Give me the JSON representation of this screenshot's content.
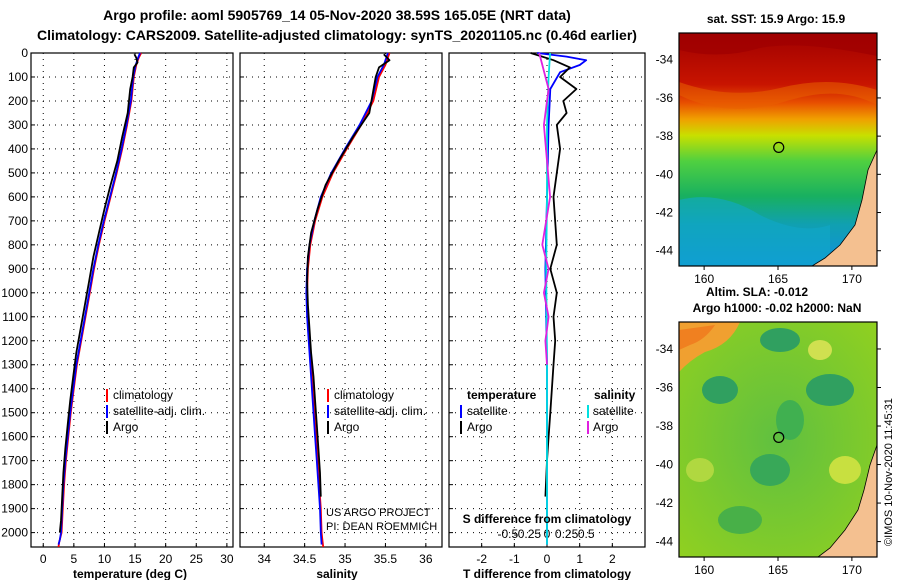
{
  "header": {
    "line1": "Argo profile: aoml 5905769_14 05-Nov-2020 38.59S 165.05E (NRT data)",
    "line2": "Climatology: CARS2009. Satellite-adjusted climatology: synTS_20201105.nc (0.46d earlier)"
  },
  "watermark": "©IMOS 10-Nov-2020 11:45:31",
  "colors": {
    "climatology": "#ff0000",
    "satellite": "#0000ff",
    "argo": "#000000",
    "cyan": "#00e0e0",
    "magenta": "#e020e0",
    "land": "#f4c090"
  },
  "chart_data": [
    {
      "type": "line",
      "panel": "temperature",
      "xlabel": "temperature (deg C)",
      "ylabel": "",
      "xlim": [
        -2,
        31
      ],
      "ylim": [
        2060,
        0
      ],
      "xticks": [
        "0",
        "5",
        "10",
        "15",
        "20",
        "25",
        "30"
      ],
      "xtick_values": [
        0,
        5,
        10,
        15,
        20,
        25,
        30
      ],
      "yticks": [
        "0",
        "100",
        "200",
        "300",
        "400",
        "500",
        "600",
        "700",
        "800",
        "900",
        "1000",
        "1100",
        "1200",
        "1300",
        "1400",
        "1500",
        "1600",
        "1700",
        "1800",
        "1900",
        "2000"
      ],
      "ytick_values": [
        0,
        100,
        200,
        300,
        400,
        500,
        600,
        700,
        800,
        900,
        1000,
        1100,
        1200,
        1300,
        1400,
        1500,
        1600,
        1700,
        1800,
        1900,
        2000
      ],
      "legend": [
        "climatology",
        "satellite-adj. clim.",
        "Argo"
      ],
      "series": [
        {
          "name": "climatology",
          "color": "#ff0000",
          "x": [
            16.0,
            15.6,
            15.2,
            14.8,
            14.4,
            13.7,
            12.9,
            12.0,
            11.0,
            10.0,
            9.1,
            8.3,
            7.6,
            6.9,
            6.2,
            5.5,
            5.0,
            4.5,
            4.1,
            3.7,
            3.4,
            3.2,
            3.0,
            2.8,
            2.6,
            2.5
          ],
          "y": [
            0,
            20,
            50,
            100,
            200,
            300,
            400,
            500,
            600,
            700,
            800,
            900,
            1000,
            1100,
            1200,
            1300,
            1400,
            1500,
            1600,
            1700,
            1800,
            1900,
            2000,
            2020,
            2040,
            2060
          ]
        },
        {
          "name": "satellite-adj. clim.",
          "color": "#0000ff",
          "x": [
            15.8,
            15.5,
            15.1,
            14.7,
            14.3,
            13.6,
            12.8,
            11.9,
            10.9,
            9.9,
            9.0,
            8.2,
            7.5,
            6.8,
            6.1,
            5.4,
            4.9,
            4.4,
            4.0,
            3.6,
            3.3,
            3.1,
            2.9,
            2.7,
            2.5
          ],
          "y": [
            0,
            20,
            50,
            100,
            200,
            300,
            400,
            500,
            600,
            700,
            800,
            900,
            1000,
            1100,
            1200,
            1300,
            1400,
            1500,
            1600,
            1700,
            1800,
            1900,
            2000,
            2030,
            2050
          ]
        },
        {
          "name": "Argo",
          "color": "#000000",
          "x": [
            14.9,
            15.2,
            15.4,
            14.8,
            14.6,
            14.2,
            13.8,
            12.9,
            12.1,
            11.0,
            10.0,
            9.1,
            8.2,
            7.5,
            6.8,
            6.1,
            5.4,
            4.9,
            4.4,
            4.0,
            3.6,
            3.3,
            3.1,
            2.9,
            2.7
          ],
          "y": [
            5,
            20,
            40,
            60,
            100,
            150,
            250,
            350,
            450,
            550,
            650,
            750,
            850,
            950,
            1050,
            1150,
            1250,
            1350,
            1450,
            1550,
            1650,
            1750,
            1850,
            1950,
            2000
          ]
        }
      ]
    },
    {
      "type": "line",
      "panel": "salinity",
      "xlabel": "salinity",
      "xlim": [
        33.7,
        36.2
      ],
      "ylim": [
        2060,
        0
      ],
      "xticks": [
        "34",
        "34.5",
        "35",
        "35.5",
        "36"
      ],
      "xtick_values": [
        34,
        34.5,
        35,
        35.5,
        36
      ],
      "legend": [
        "climatology",
        "satellite-adj. clim.",
        "Argo"
      ],
      "annotation": [
        "US ARGO PROJECT",
        "PI: DEAN ROEMMICH"
      ],
      "series": [
        {
          "name": "climatology",
          "color": "#ff0000",
          "x": [
            35.55,
            35.5,
            35.42,
            35.35,
            35.2,
            35.02,
            34.85,
            34.72,
            34.63,
            34.57,
            34.54,
            34.53,
            34.54,
            34.56,
            34.58,
            34.6,
            34.62,
            34.64,
            34.66,
            34.68,
            34.7,
            34.71,
            34.72,
            34.73
          ],
          "y": [
            0,
            50,
            100,
            200,
            300,
            400,
            500,
            600,
            700,
            800,
            900,
            1000,
            1100,
            1200,
            1300,
            1400,
            1500,
            1600,
            1700,
            1800,
            1900,
            2000,
            2030,
            2060
          ]
        },
        {
          "name": "satellite-adj. clim.",
          "color": "#0000ff",
          "x": [
            35.53,
            35.48,
            35.4,
            35.33,
            35.18,
            35.0,
            34.83,
            34.7,
            34.62,
            34.56,
            34.53,
            34.52,
            34.53,
            34.55,
            34.57,
            34.59,
            34.61,
            34.63,
            34.65,
            34.67,
            34.69,
            34.7,
            34.71
          ],
          "y": [
            0,
            50,
            100,
            200,
            300,
            400,
            500,
            600,
            700,
            800,
            900,
            1000,
            1100,
            1200,
            1300,
            1400,
            1500,
            1600,
            1700,
            1800,
            1900,
            2000,
            2050
          ]
        },
        {
          "name": "Argo",
          "color": "#000000",
          "x": [
            35.48,
            35.55,
            35.42,
            35.38,
            35.3,
            35.1,
            34.92,
            34.76,
            34.66,
            34.58,
            34.54,
            34.53,
            34.54,
            34.56,
            34.58,
            34.61,
            34.63,
            34.65,
            34.67,
            34.69,
            34.7
          ],
          "y": [
            5,
            30,
            60,
            100,
            250,
            350,
            450,
            550,
            650,
            750,
            850,
            950,
            1050,
            1150,
            1250,
            1350,
            1450,
            1550,
            1650,
            1750,
            1850
          ]
        }
      ]
    },
    {
      "type": "line",
      "panel": "difference",
      "xlabel": "T difference from climatology",
      "top_axis_label": "S difference from climatology",
      "xlim": [
        -3,
        3
      ],
      "ylim": [
        2060,
        0
      ],
      "xticks": [
        "-2",
        "-1",
        "0",
        "1",
        "2"
      ],
      "xtick_values": [
        -2,
        -1,
        0,
        1,
        2
      ],
      "sticks": [
        "-0.5",
        "-0.25",
        "0",
        "0.25",
        "0.5"
      ],
      "stick_values": [
        -0.5,
        -0.25,
        0,
        0.25,
        0.5
      ],
      "legend_left_title": "temperature",
      "legend_left": [
        "satellite",
        "Argo"
      ],
      "legend_right_title": "salinity",
      "legend_right": [
        "satellite",
        "Argo"
      ],
      "series": [
        {
          "name": "T satellite",
          "color": "#0000ff",
          "x": [
            -0.3,
            0.6,
            1.2,
            1.0,
            0.4,
            0.1,
            0.05,
            0.0,
            -0.05,
            0.0,
            0.0,
            0.0
          ],
          "y": [
            0,
            15,
            30,
            50,
            80,
            150,
            300,
            600,
            900,
            1300,
            1700,
            2050
          ]
        },
        {
          "name": "T Argo",
          "color": "#000000",
          "x": [
            -0.5,
            0.2,
            0.7,
            0.4,
            0.9,
            0.5,
            0.6,
            0.3,
            0.4,
            0.2,
            0.3,
            0.1,
            0.3,
            0.2,
            0.25,
            0.2,
            0.15,
            0.1,
            0.05,
            0.0,
            -0.05
          ],
          "y": [
            0,
            30,
            60,
            100,
            150,
            200,
            250,
            300,
            400,
            600,
            800,
            900,
            1000,
            1100,
            1200,
            1300,
            1400,
            1500,
            1600,
            1700,
            1850
          ]
        },
        {
          "name": "S satellite",
          "color": "#00e0e0",
          "x": [
            0.02,
            0.01,
            0.0,
            0.0,
            -0.005,
            0.0,
            0.0,
            0.0
          ],
          "y": [
            0,
            100,
            300,
            600,
            900,
            1300,
            1700,
            2050
          ]
        },
        {
          "name": "S Argo",
          "color": "#e020e0",
          "x": [
            -0.05,
            0.01,
            -0.02,
            0.02,
            -0.03,
            0.01,
            -0.02,
            0.01,
            -0.01,
            0.0
          ],
          "y": [
            0,
            150,
            300,
            600,
            800,
            900,
            1000,
            1100,
            1200,
            1300
          ]
        }
      ]
    }
  ],
  "maps": {
    "sst": {
      "title": "sat. SST: 15.9 Argo: 15.9",
      "yticks": [
        "-34",
        "-36",
        "-38",
        "-40",
        "-42",
        "-44"
      ],
      "ytick_values": [
        -34,
        -36,
        -38,
        -40,
        -42,
        -44
      ],
      "xticks": [
        "160",
        "165",
        "170"
      ],
      "xtick_values": [
        160,
        165,
        170
      ],
      "lonlim": [
        158.3,
        171.7
      ],
      "latlim": [
        -44.8,
        -32.6
      ],
      "float_lon": 165.05,
      "float_lat": -38.59
    },
    "sla": {
      "title1": "Altim. SLA: -0.012",
      "title2": "Argo h1000: -0.02 h2000: NaN",
      "yticks": [
        "-34",
        "-36",
        "-38",
        "-40",
        "-42",
        "-44"
      ],
      "ytick_values": [
        -34,
        -36,
        -38,
        -40,
        -42,
        -44
      ],
      "xticks": [
        "160",
        "165",
        "170"
      ],
      "xtick_values": [
        160,
        165,
        170
      ],
      "lonlim": [
        158.3,
        171.7
      ],
      "latlim": [
        -44.8,
        -32.6
      ],
      "float_lon": 165.05,
      "float_lat": -38.59
    }
  }
}
